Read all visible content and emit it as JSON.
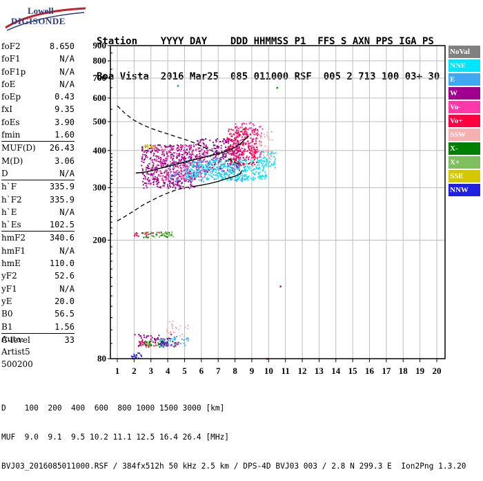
{
  "logo": {
    "line1": "Lowell",
    "line2": "DIGISONDE"
  },
  "header": {
    "line1": "Station    YYYY DAY    DDD HHMMSS P1  FFS S AXN PPS IGA PS",
    "line2": "Boa Vista  2016 Mar25  085 011000 RSF  005 2 713 100 03+ 30"
  },
  "params": {
    "group1": [
      {
        "label": "foF2",
        "value": "8.650"
      },
      {
        "label": "foF1",
        "value": "N/A"
      },
      {
        "label": "foF1p",
        "value": "N/A"
      },
      {
        "label": "foE",
        "value": "N/A"
      },
      {
        "label": "foEp",
        "value": "0.43"
      },
      {
        "label": "fxI",
        "value": "9.35"
      },
      {
        "label": "foEs",
        "value": "3.90"
      },
      {
        "label": "fmin",
        "value": "1.60"
      }
    ],
    "group2": [
      {
        "label": "MUF(D)",
        "value": "26.43"
      },
      {
        "label": "M(D)",
        "value": "3.06"
      },
      {
        "label": "D",
        "value": "N/A"
      }
    ],
    "group3": [
      {
        "label": "h`F",
        "value": "335.9"
      },
      {
        "label": "h`F2",
        "value": "335.9"
      },
      {
        "label": "h`E",
        "value": "N/A"
      },
      {
        "label": "h`Es",
        "value": "102.5"
      }
    ],
    "group4": [
      {
        "label": "hmF2",
        "value": "340.6"
      },
      {
        "label": "hmF1",
        "value": "N/A"
      },
      {
        "label": "hmE",
        "value": "110.0"
      },
      {
        "label": "yF2",
        "value": "52.6"
      },
      {
        "label": "yF1",
        "value": "N/A"
      },
      {
        "label": "yE",
        "value": "20.0"
      },
      {
        "label": "B0",
        "value": "56.5"
      },
      {
        "label": "B1",
        "value": "1.56"
      }
    ],
    "group5": [
      {
        "label": "C-level",
        "value": "33"
      }
    ]
  },
  "auto": {
    "line1": "Auto:",
    "line2": "Artist5",
    "line3": "500200"
  },
  "footer": {
    "line1": "D    100  200  400  600  800 1000 1500 3000 [km]",
    "line2": "MUF  9.0  9.1  9.5 10.2 11.1 12.5 16.4 26.4 [MHz]",
    "line3": "BVJ03_2016085011000.RSF / 384fx512h 50 kHz 2.5 km / DPS-4D BVJ03 003 / 2.8 N 299.3 E  Ion2Png 1.3.20"
  },
  "legend": [
    {
      "label": "NoVal",
      "color": "#808080"
    },
    {
      "label": "NNE",
      "color": "#00e5ff"
    },
    {
      "label": "E",
      "color": "#3fa8f0"
    },
    {
      "label": "W",
      "color": "#a0008f"
    },
    {
      "label": "Vo-",
      "color": "#ff3aa8"
    },
    {
      "label": "Vo+",
      "color": "#ff0040"
    },
    {
      "label": "SSW",
      "color": "#f5b0b0"
    },
    {
      "label": "X-",
      "color": "#007f00"
    },
    {
      "label": "X+",
      "color": "#7fbf5f"
    },
    {
      "label": "SSE",
      "color": "#d4c800"
    },
    {
      "label": "NNW",
      "color": "#2020e0"
    }
  ],
  "chart_data": {
    "type": "scatter",
    "x_ticks": [
      "1",
      "2",
      "3",
      "4",
      "5",
      "6",
      "7",
      "8",
      "9",
      "10",
      "11",
      "12",
      "13",
      "14",
      "15",
      "16",
      "17",
      "18",
      "19",
      "20"
    ],
    "y_ticks": [
      "80",
      "200",
      "300",
      "400",
      "500",
      "600",
      "700",
      "800",
      "900"
    ],
    "xlim": [
      1,
      20
    ],
    "ylim": [
      80,
      900
    ],
    "y_scale": "log",
    "grid": true,
    "legend_position": "right",
    "series": [
      {
        "name": "W",
        "color": "#a0008f",
        "clusters": [
          {
            "x": [
              2.4,
              5.6
            ],
            "y": [
              300,
              420
            ],
            "weight": 1.0
          },
          {
            "x": [
              5.6,
              8.3
            ],
            "y": [
              340,
              440
            ],
            "weight": 0.9
          },
          {
            "x": [
              2.0,
              4.2
            ],
            "y": [
              88,
              97
            ],
            "weight": 0.5
          }
        ]
      },
      {
        "name": "NNE",
        "color": "#00e5ff",
        "clusters": [
          {
            "x": [
              5.0,
              9.9
            ],
            "y": [
              320,
              375
            ],
            "weight": 1.0
          },
          {
            "x": [
              9.2,
              10.4
            ],
            "y": [
              350,
              400
            ],
            "weight": 0.6
          },
          {
            "x": [
              3.4,
              4.4
            ],
            "y": [
              88,
              94
            ],
            "weight": 0.3
          }
        ]
      },
      {
        "name": "E",
        "color": "#3fa8f0",
        "clusters": [
          {
            "x": [
              3.6,
              5.2
            ],
            "y": [
              89,
              96
            ],
            "weight": 0.5
          },
          {
            "x": [
              4.0,
              8.6
            ],
            "y": [
              315,
              380
            ],
            "weight": 0.4
          }
        ]
      },
      {
        "name": "Vo-",
        "color": "#ff3aa8",
        "clusters": [
          {
            "x": [
              3.0,
              6.4
            ],
            "y": [
              320,
              420
            ],
            "weight": 0.5
          },
          {
            "x": [
              7.8,
              9.6
            ],
            "y": [
              380,
              500
            ],
            "weight": 0.6
          }
        ]
      },
      {
        "name": "Vo+",
        "color": "#ff0040",
        "clusters": [
          {
            "x": [
              7.5,
              9.3
            ],
            "y": [
              360,
              480
            ],
            "weight": 0.9
          },
          {
            "x": [
              1.9,
              3.5
            ],
            "y": [
              207,
              214
            ],
            "weight": 0.3
          },
          {
            "x": [
              2.2,
              4.6
            ],
            "y": [
              88,
              92
            ],
            "weight": 0.6
          }
        ]
      },
      {
        "name": "SSW",
        "color": "#f5b0b0",
        "clusters": [
          {
            "x": [
              9.4,
              10.2
            ],
            "y": [
              370,
              470
            ],
            "weight": 0.3
          },
          {
            "x": [
              3.9,
              5.2
            ],
            "y": [
              95,
              108
            ],
            "weight": 0.2
          }
        ]
      },
      {
        "name": "X-",
        "color": "#007f00",
        "clusters": [
          {
            "x": [
              2.4,
              4.2
            ],
            "y": [
              205,
              214
            ],
            "weight": 0.4
          },
          {
            "x": [
              2.6,
              3.8
            ],
            "y": [
              88,
              92
            ],
            "weight": 0.4
          }
        ]
      },
      {
        "name": "X+",
        "color": "#7fbf5f",
        "clusters": [
          {
            "x": [
              2.6,
              4.3
            ],
            "y": [
              206,
              215
            ],
            "weight": 0.5
          },
          {
            "x": [
              2.4,
              3.8
            ],
            "y": [
              87,
              93
            ],
            "weight": 0.4
          }
        ]
      },
      {
        "name": "SSE",
        "color": "#d4c800",
        "clusters": [
          {
            "x": [
              2.5,
              3.2
            ],
            "y": [
              410,
              420
            ],
            "weight": 0.2
          }
        ]
      },
      {
        "name": "NNW",
        "color": "#2020e0",
        "clusters": [
          {
            "x": [
              1.8,
              2.4
            ],
            "y": [
              80,
              84
            ],
            "weight": 0.3
          },
          {
            "x": [
              3.5,
              4.0
            ],
            "y": [
              88,
              92
            ],
            "weight": 0.2
          }
        ]
      }
    ],
    "trace_solid_black": {
      "x": [
        2.1,
        2.6,
        3.0,
        3.5,
        4.0,
        4.5,
        5.0,
        5.5,
        6.0,
        6.5,
        7.0,
        7.5,
        8.0,
        8.4,
        8.8
      ],
      "y": [
        336,
        338,
        342,
        348,
        354,
        360,
        366,
        372,
        378,
        384,
        390,
        398,
        410,
        425,
        448
      ]
    },
    "profile_solid": {
      "x": [
        5.5,
        6.0,
        6.5,
        7.0,
        7.5,
        8.0,
        8.3,
        8.4
      ],
      "y": [
        303,
        306,
        310,
        315,
        322,
        328,
        333,
        342
      ]
    },
    "profile_dashed_upper": {
      "x": [
        1.0,
        1.5,
        2.0,
        2.5,
        3.0,
        3.5,
        4.0,
        4.5,
        5.0,
        5.5,
        6.0,
        6.5,
        7.0,
        7.5,
        8.0,
        8.4
      ],
      "y": [
        565,
        530,
        505,
        488,
        475,
        464,
        455,
        445,
        436,
        426,
        414,
        402,
        390,
        378,
        365,
        355
      ]
    },
    "profile_dashed_lower": {
      "x": [
        1.0,
        1.5,
        2.0,
        2.5,
        3.0,
        3.5,
        4.0,
        4.5,
        5.0,
        5.5
      ],
      "y": [
        232,
        241,
        251,
        262,
        271,
        280,
        288,
        295,
        300,
        303
      ]
    },
    "stray_points": [
      {
        "x": 4.6,
        "y": 660,
        "color": "#00a8a8"
      },
      {
        "x": 10.5,
        "y": 650,
        "color": "#00a000"
      },
      {
        "x": 10.7,
        "y": 140,
        "color": "#e00040"
      },
      {
        "x": 9.9,
        "y": 80,
        "color": "#e00040"
      }
    ]
  }
}
